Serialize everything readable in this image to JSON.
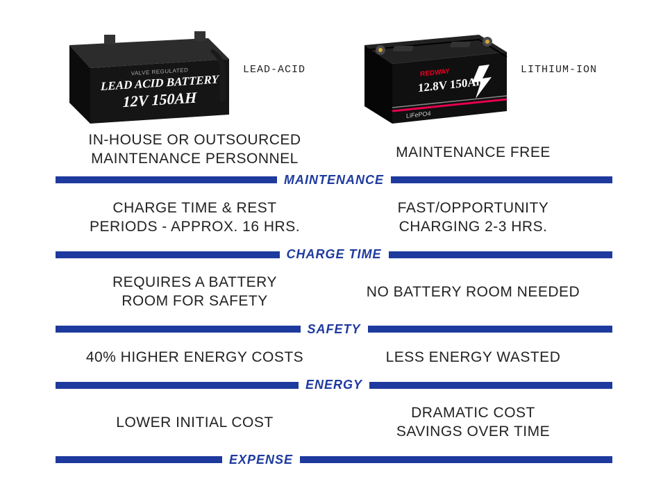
{
  "colors": {
    "accent": "#1e3a9e",
    "text": "#222222",
    "bg": "#ffffff",
    "battery_body": "#1a1a1a",
    "battery_highlight": "#3a3a3a",
    "battery_text": "#ffffff",
    "redway_brand": "#e60023",
    "redway_stripe1": "#e60023",
    "redway_stripe2": "#cccccc"
  },
  "lead_acid": {
    "top_label": "VALVE REGULATED",
    "title": "LEAD ACID BATTERY",
    "spec": "12V 150AH",
    "type_label": "LEAD-ACID"
  },
  "lithium": {
    "brand": "REDWAY",
    "spec": "12.8V 150Ah",
    "chem": "LiFePO4",
    "type_label": "LITHIUM-ION"
  },
  "rows": [
    {
      "label": "MAINTENANCE",
      "left": "IN-HOUSE OR OUTSOURCED\nMAINTENANCE PERSONNEL",
      "right": "MAINTENANCE FREE"
    },
    {
      "label": "CHARGE TIME",
      "left": "CHARGE TIME & REST\nPERIODS - APPROX. 16 HRS.",
      "right": "FAST/OPPORTUNITY\nCHARGING 2-3 HRS."
    },
    {
      "label": "SAFETY",
      "left": "REQUIRES A BATTERY\nROOM FOR SAFETY",
      "right": "NO BATTERY ROOM NEEDED"
    },
    {
      "label": "ENERGY",
      "left": "40% HIGHER ENERGY COSTS",
      "right": "LESS ENERGY WASTED"
    },
    {
      "label": "EXPENSE",
      "left": "LOWER INITIAL COST",
      "right": "DRAMATIC COST\nSAVINGS OVER TIME"
    }
  ]
}
